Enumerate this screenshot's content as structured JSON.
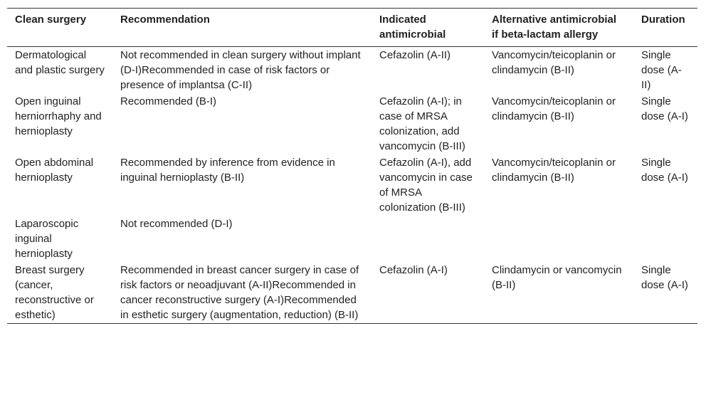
{
  "table": {
    "headers": [
      "Clean surgery",
      "Recommendation",
      "Indicated antimicrobial",
      "Alternative antimicrobial if beta-lactam allergy",
      "Duration"
    ],
    "rows": [
      [
        "Dermatological and plastic surgery",
        "Not recommended in clean surgery without implant (D-I)Recommended in case of risk factors or presence of implantsa (C-II)",
        "Cefazolin (A-II)",
        "Vancomycin/teicoplanin or clindamycin (B-II)",
        "Single dose (A-II)"
      ],
      [
        "Open inguinal herniorrhaphy and hernioplasty",
        "Recommended (B-I)",
        "Cefazolin (A-I); in case of MRSA colonization, add vancomycin (B-III)",
        "Vancomycin/teicoplanin or clindamycin (B-II)",
        "Single dose (A-I)"
      ],
      [
        "Open abdominal hernioplasty",
        "Recommended by inference from evidence in inguinal hernioplasty (B-II)",
        "Cefazolin (A-I), add vancomycin in case of MRSA colonization (B-III)",
        "Vancomycin/teicoplanin or clindamycin (B-II)",
        "Single dose (A-I)"
      ],
      [
        "Laparoscopic inguinal hernioplasty",
        "Not recommended (D-I)"
      ],
      [
        "Breast surgery (cancer, reconstructive or esthetic)",
        "Recommended in breast cancer surgery in case of risk factors or neoadjuvant (A-II)Recommended in cancer reconstructive surgery (A-I)Recommended in esthetic surgery (augmentation, reduction) (B-II)",
        "Cefazolin (A-I)",
        "Clindamycin or vancomycin (B-II)",
        "Single dose (A-I)"
      ]
    ]
  }
}
